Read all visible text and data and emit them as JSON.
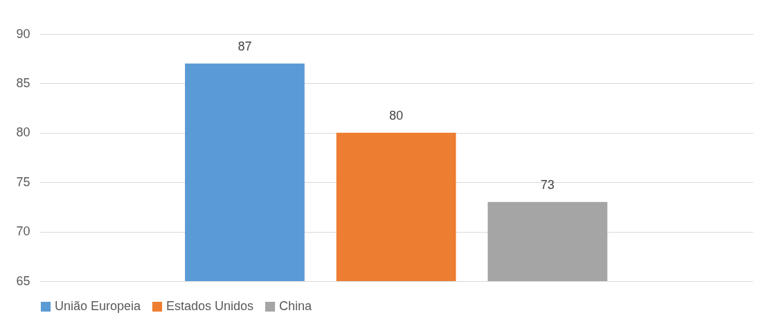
{
  "chart_data": {
    "type": "bar",
    "categories": [
      null
    ],
    "series": [
      {
        "name": "União Europeia",
        "color": "#5b9bd5",
        "values": [
          87
        ]
      },
      {
        "name": "Estados Unidos",
        "color": "#ed7d31",
        "values": [
          80
        ]
      },
      {
        "name": "China",
        "color": "#a5a5a5",
        "values": [
          73
        ]
      }
    ],
    "ylim": [
      65,
      90
    ],
    "yticks": [
      65,
      70,
      75,
      80,
      85,
      90
    ],
    "grid": "y",
    "legend": "bottom",
    "data_labels": true
  }
}
